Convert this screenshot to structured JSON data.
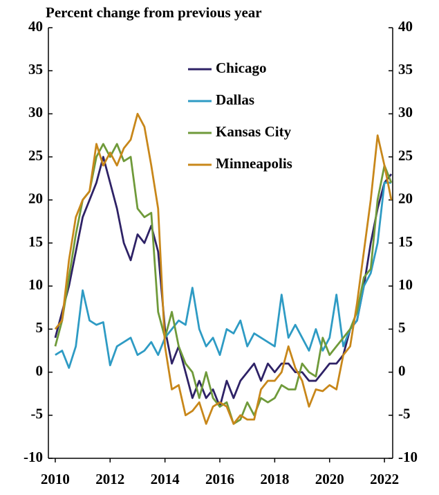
{
  "chart_data": {
    "type": "line",
    "title": "Percent change from previous year",
    "x": [
      2010,
      2010.25,
      2010.5,
      2010.75,
      2011,
      2011.25,
      2011.5,
      2011.75,
      2012,
      2012.25,
      2012.5,
      2012.75,
      2013,
      2013.25,
      2013.5,
      2013.75,
      2014,
      2014.25,
      2014.5,
      2014.75,
      2015,
      2015.25,
      2015.5,
      2015.75,
      2016,
      2016.25,
      2016.5,
      2016.75,
      2017,
      2017.25,
      2017.5,
      2017.75,
      2018,
      2018.25,
      2018.5,
      2018.75,
      2019,
      2019.25,
      2019.5,
      2019.75,
      2020,
      2020.25,
      2020.5,
      2020.75,
      2021,
      2021.25,
      2021.5,
      2021.75,
      2022,
      2022.25
    ],
    "series": [
      {
        "name": "Chicago",
        "color": "#2e2266",
        "values": [
          4,
          7,
          10,
          14,
          18,
          20,
          22,
          25,
          22,
          19,
          15,
          13,
          16,
          15,
          17,
          14,
          5,
          1,
          3,
          0,
          -3,
          -1,
          -3,
          -2,
          -4,
          -1,
          -3,
          -1,
          0,
          1,
          -1,
          1,
          0,
          1,
          1,
          0,
          0,
          -1,
          -1,
          0,
          1,
          1,
          2,
          5,
          6,
          10,
          15,
          19,
          22,
          23
        ]
      },
      {
        "name": "Dallas",
        "color": "#2e9bc4",
        "values": [
          2,
          2.5,
          0.5,
          3,
          9.5,
          6,
          5.5,
          5.8,
          0.8,
          3,
          3.5,
          4,
          2,
          2.5,
          3.5,
          2,
          4,
          5,
          6,
          5.5,
          9.8,
          5,
          3,
          4,
          2,
          5,
          4.5,
          6,
          3,
          4.5,
          4,
          3.5,
          3,
          9,
          4,
          5.5,
          4,
          2.5,
          5,
          2.5,
          4,
          9,
          3,
          5,
          6,
          10,
          11.5,
          15,
          22,
          22
        ]
      },
      {
        "name": "Kansas City",
        "color": "#6f9a3a",
        "values": [
          3,
          6,
          11,
          16,
          20,
          21,
          25,
          26.5,
          25,
          26.5,
          24.5,
          25,
          19,
          18,
          18.5,
          7,
          4,
          7,
          3,
          1,
          0,
          -3,
          0,
          -3,
          -4,
          -3.5,
          -6,
          -5.5,
          -3.5,
          -5,
          -3,
          -3.5,
          -3,
          -1.5,
          -2,
          -2,
          1,
          0,
          -0.5,
          4,
          2,
          3,
          4,
          5,
          7,
          11,
          12,
          20,
          24,
          22
        ]
      },
      {
        "name": "Minneapolis",
        "color": "#c8871a",
        "values": [
          5,
          6,
          13,
          18,
          20,
          21,
          26.5,
          24,
          25.5,
          24,
          26,
          27,
          30,
          28.5,
          24,
          19,
          3,
          -2,
          -1.5,
          -5,
          -4.5,
          -3.5,
          -6,
          -4,
          -3.5,
          -4,
          -6,
          -5,
          -5.5,
          -5.5,
          -2,
          -1,
          -1,
          0,
          3,
          0.5,
          -1,
          -4,
          -2,
          -2.2,
          -1.5,
          -2,
          2,
          3,
          8,
          14,
          20,
          27.5,
          24,
          20
        ]
      }
    ],
    "xlim": [
      2009.75,
      2022.3
    ],
    "xticks": [
      2010,
      2012,
      2014,
      2016,
      2018,
      2020,
      2022
    ],
    "ylim": [
      -10,
      40
    ],
    "yticks": [
      -10,
      -5,
      0,
      5,
      10,
      15,
      20,
      25,
      30,
      35,
      40
    ],
    "y2lim": [
      -10,
      40
    ],
    "y2ticks": [
      -10,
      -5,
      0,
      5,
      10,
      15,
      20,
      25,
      30,
      35,
      40
    ]
  }
}
